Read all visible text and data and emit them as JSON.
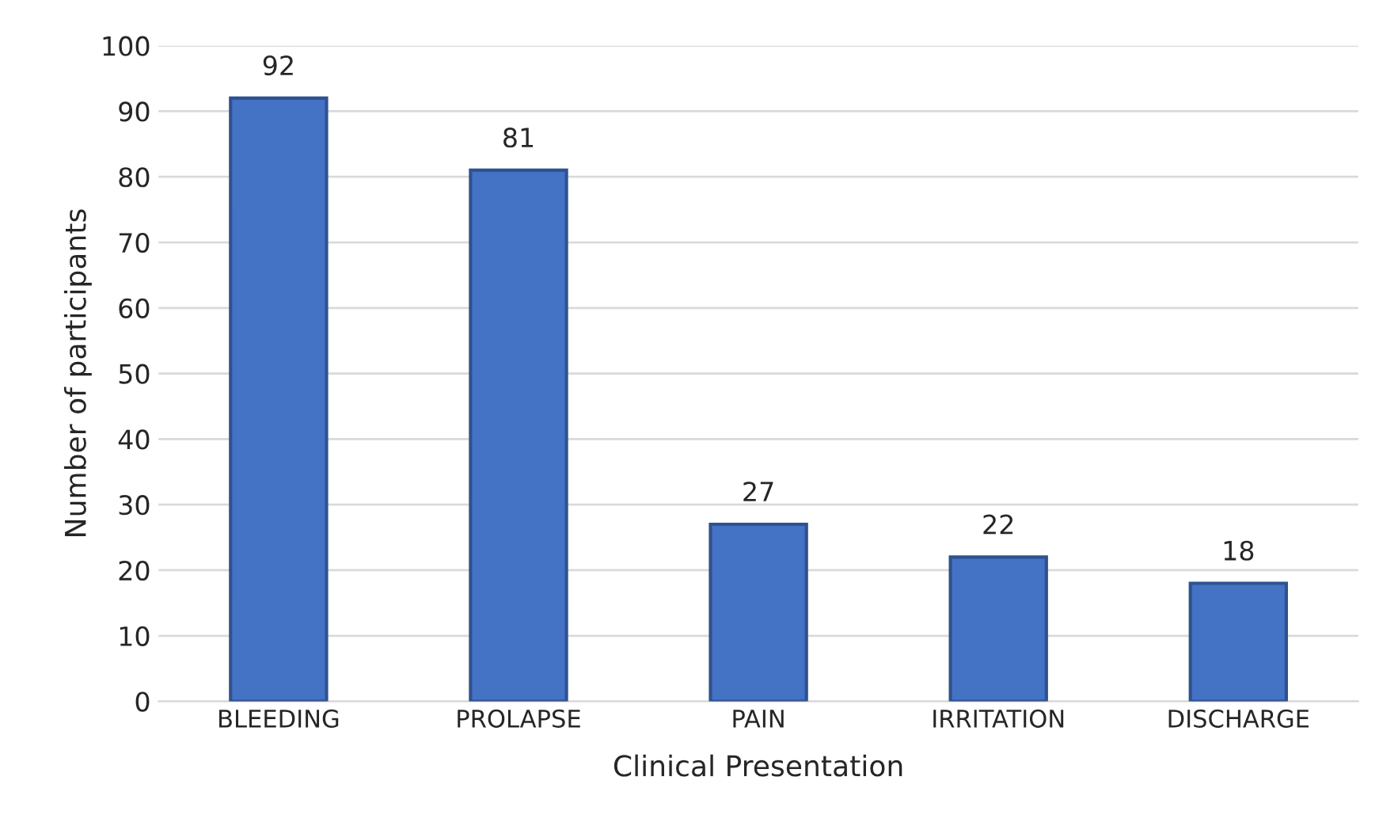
{
  "chart_data": {
    "type": "bar",
    "xlabel": "Clinical Presentation",
    "ylabel": "Number of participants",
    "categories": [
      "BLEEDING",
      "PROLAPSE",
      "PAIN",
      "IRRITATION",
      "DISCHARGE"
    ],
    "values": [
      92,
      81,
      27,
      22,
      18
    ],
    "color": "#4472c4",
    "ylim": [
      0,
      100
    ],
    "yticks": [
      0,
      10,
      20,
      30,
      40,
      50,
      60,
      70,
      80,
      90,
      100
    ],
    "grid": "y",
    "data_labels": true
  }
}
